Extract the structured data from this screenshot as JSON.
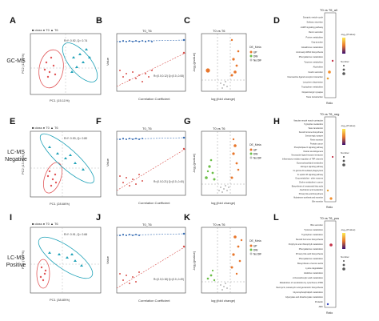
{
  "figure": {
    "rows": [
      {
        "row_label": "GC-MS",
        "panels": [
          {
            "letter": "A",
            "type": "pca",
            "legend": [
              "class",
              "T0",
              "T6"
            ],
            "stats": "R²Y: 0.92, Q²: 0.74",
            "xlabel": "PC1 (15.11%)",
            "ylabel": "PC2 (12.02%)"
          },
          {
            "letter": "B",
            "type": "permutation",
            "title": "T0_T6",
            "ylabel": "Value",
            "xlabel": "Correlation Coefficient",
            "stats": "R²:(0.0,0.12) Q²:(0.0,-0.08)",
            "legend": [
              "R2",
              "Q2"
            ]
          },
          {
            "letter": "C",
            "type": "volcano",
            "title": "T0 vs T6",
            "xlabel": "log₂(fold change)",
            "ylabel": "-log₁₀(pvalue)",
            "legend_title": "DE_Meta",
            "legend": [
              "UP",
              "DW",
              "No DIF"
            ]
          },
          {
            "letter": "D",
            "type": "enrichment",
            "title": "T0 vs T6_all",
            "xlabel": "Ratio",
            "legend_title": "-log₁₀(Pvalue)",
            "size_title": "Number",
            "pathways": [
              "Synaptic vesicle cycle",
              "Salivary secretion",
              "cAMP signaling pathway",
              "Renin secretion",
              "Purine metabolism",
              "Gap junction",
              "Glutathione metabolism",
              "Aminoacyl-tRNA biosynthesis",
              "Phenylalanine metabolism",
              "Tyrosine metabolism",
              "Alcoholism",
              "Insulin secretion",
              "Neuroactive ligand-receptor interaction",
              "Long-term depression",
              "Tryptophan metabolism",
              "Dopaminergic synapse",
              "Taste transduction"
            ]
          }
        ]
      },
      {
        "row_label": "LC-MS Negative",
        "panels": [
          {
            "letter": "E",
            "type": "pca",
            "legend": [
              "class",
              "T0",
              "T6"
            ],
            "stats": "R²Y: 0.93, Q²: 0.80",
            "xlabel": "PC1 (28.66%)",
            "ylabel": "PC2 (13.48%)"
          },
          {
            "letter": "F",
            "type": "permutation",
            "title": "T0_T6",
            "ylabel": "Value",
            "xlabel": "Correlation Coefficient",
            "stats": "R²:(0.0,0.21) Q²:(0.0,-0.40)",
            "legend": [
              "R2",
              "Q2"
            ]
          },
          {
            "letter": "G",
            "type": "volcano",
            "title": "T0 vs T6",
            "xlabel": "log₂(fold change)",
            "ylabel": "-log₁₀(pvalue)",
            "legend_title": "DE_Meta",
            "legend": [
              "UP",
              "DW",
              "No DIF"
            ]
          },
          {
            "letter": "H",
            "type": "enrichment",
            "title": "T0 vs T6_neg",
            "xlabel": "Ratio",
            "legend_title": "-log₁₀(Pvalue)",
            "size_title": "Number",
            "pathways": [
              "Vascular smooth muscle contraction",
              "Tryptophan metabolism",
              "Taste transduction",
              "Steroid hormone biosynthesis",
              "Serotonergic synapse",
              "Renin secretion",
              "Prostate cancer",
              "Phospholipase D signaling pathway",
              "Ovarian steroidogenesis",
              "Neuroactive ligand-receptor interaction",
              "Inflammatory mediator regulation of TRP channels",
              "Glycerophospholipid metabolism",
              "Estrogen signaling pathway",
              "Fc gamma R-mediated phagocytosis",
              "Fc epsilon RI signaling pathway",
              "Drug metabolism - other enzymes",
              "Choline metabolism in cancer",
              "Biosynthesis of unsaturated fatty acids",
              "Arachidonic acid metabolism",
              "Primary bile acid biosynthesis",
              "Aldosterone synthesis and secretion",
              "Bile secretion"
            ]
          }
        ]
      },
      {
        "row_label": "LC-MS Positive",
        "panels": [
          {
            "letter": "I",
            "type": "pca",
            "legend": [
              "class",
              "T0",
              "T6"
            ],
            "stats": "R²Y: 0.91, Q²: 0.66",
            "xlabel": "PC1 (38.85%)",
            "ylabel": "PC2 (7.47%)"
          },
          {
            "letter": "J",
            "type": "permutation",
            "title": "T0_T6",
            "ylabel": "Value",
            "xlabel": "Correlation Coefficient",
            "stats": "R²:(0.0,0.18) Q²:(0.0,-0.49)",
            "legend": [
              "R2",
              "Q2"
            ]
          },
          {
            "letter": "K",
            "type": "volcano",
            "title": "T0 vs T6",
            "xlabel": "log₂(fold change)",
            "ylabel": "-log₁₀(pvalue)",
            "legend_title": "DE_Meta",
            "legend": [
              "UP",
              "DW",
              "No DIF"
            ]
          },
          {
            "letter": "L",
            "type": "enrichment",
            "title": "T0 vs T6_pos",
            "xlabel": "Ratio",
            "legend_title": "-log₁₀(Pvalue)",
            "size_title": "Number",
            "pathways": [
              "Bile secretion",
              "Tyrosine metabolism",
              "Tryptophan metabolism",
              "Steroid hormone biosynthesis",
              "Porphyrin and chlorophyll metabolism",
              "Phenylalanine metabolism",
              "Primary bile acid biosynthesis",
              "Phenylalanine metabolism",
              "Biosynthesis of amino acids",
              "Lysine degradation",
              "Histidine metabolism",
              "2-Oxocarboxylic acid metabolism",
              "Metabolism of xenobiotics by cytochrome P450",
              "Neomycin, kanamycin and gentamicin biosynthesis",
              "Glycerophospholipid metabolism",
              "Glyoxylate and dicarboxylate metabolism",
              "Prolactin",
              "ABC"
            ]
          }
        ]
      }
    ]
  },
  "colors": {
    "t0": "#e15759",
    "t6": "#1fa2b8",
    "r2": "#3a6fb5",
    "q2": "#d9534f",
    "up": "#e8762b",
    "dw": "#6cbf48",
    "nodif": "#bbbbbb"
  }
}
